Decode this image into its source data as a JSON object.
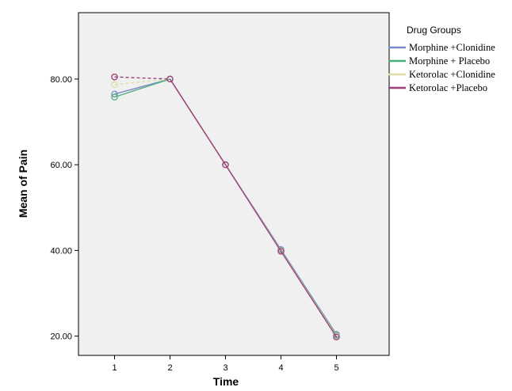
{
  "chart_data": {
    "type": "line",
    "xlabel": "Time",
    "ylabel": "Mean of Pain",
    "x": [
      1,
      2,
      3,
      4,
      5
    ],
    "xticks": [
      "1",
      "2",
      "3",
      "4",
      "5"
    ],
    "yticks": [
      "20.00",
      "40.00",
      "60.00",
      "80.00"
    ],
    "ytick_values": [
      20,
      40,
      60,
      80
    ],
    "xlim": [
      0.35,
      5.95
    ],
    "ylim": [
      15.5,
      95.5
    ],
    "grid": false,
    "legend": {
      "title": "Drug Groups",
      "placement": "right"
    },
    "series": [
      {
        "name": "Morphine +Clonidine",
        "color": "#7b89c9",
        "values": [
          76.5,
          80.0,
          60.0,
          40.2,
          20.4
        ]
      },
      {
        "name": "Morphine + Placebo",
        "color": "#4caf7a",
        "values": [
          75.8,
          80.0,
          60.0,
          40.0,
          20.2
        ]
      },
      {
        "name": "Ketorolac +Clonidine",
        "color": "#dedea6",
        "values": [
          78.7,
          80.0,
          60.0,
          39.9,
          20.0
        ]
      },
      {
        "name": "Ketorolac +Placebo",
        "color": "#9c3f7c",
        "values": [
          80.5,
          80.0,
          60.0,
          39.8,
          19.8
        ]
      }
    ]
  }
}
